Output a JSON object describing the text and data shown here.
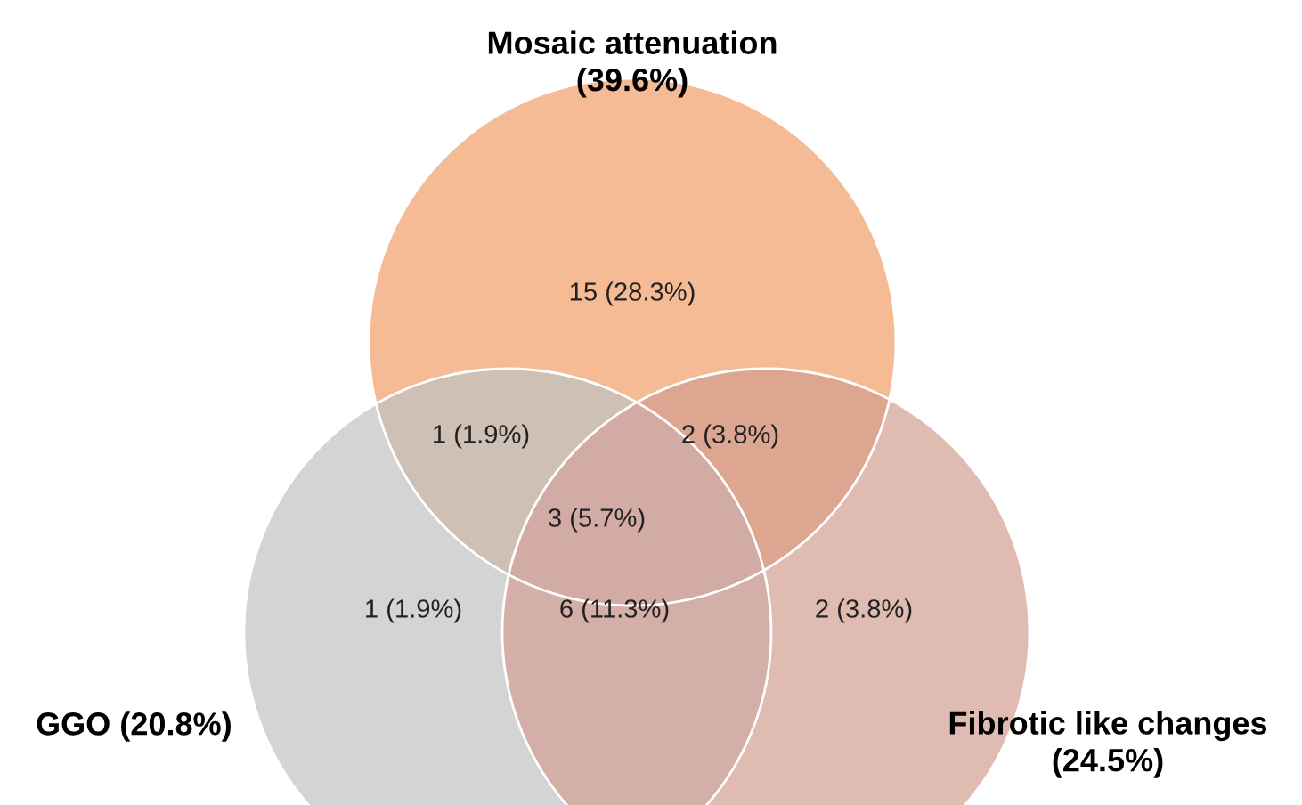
{
  "chart_data": {
    "type": "other",
    "categories": [
      null,
      null,
      null,
      null,
      null,
      null,
      null
    ],
    "values": [
      15,
      1,
      2,
      3,
      1,
      6,
      2
    ],
    "value_labels": [
      "15 (28.3%)",
      "1 (1.9%)",
      "2 (3.8%)",
      "3 (5.7%)",
      "1 (1.9%)",
      "6 (11.3%)",
      "2 (3.8%)"
    ],
    "colors": [
      "#f5bb95",
      "#cfc0b6",
      "#dca690",
      "#d2aba4",
      "#d4d4d4",
      "#d4afa7",
      "#e0bbb2"
    ],
    "annotations": [
      "Mosaic attenuation\n(39.6%)",
      "GGO (20.8%)",
      "Fibrotic like changes\n(24.5%)"
    ]
  }
}
